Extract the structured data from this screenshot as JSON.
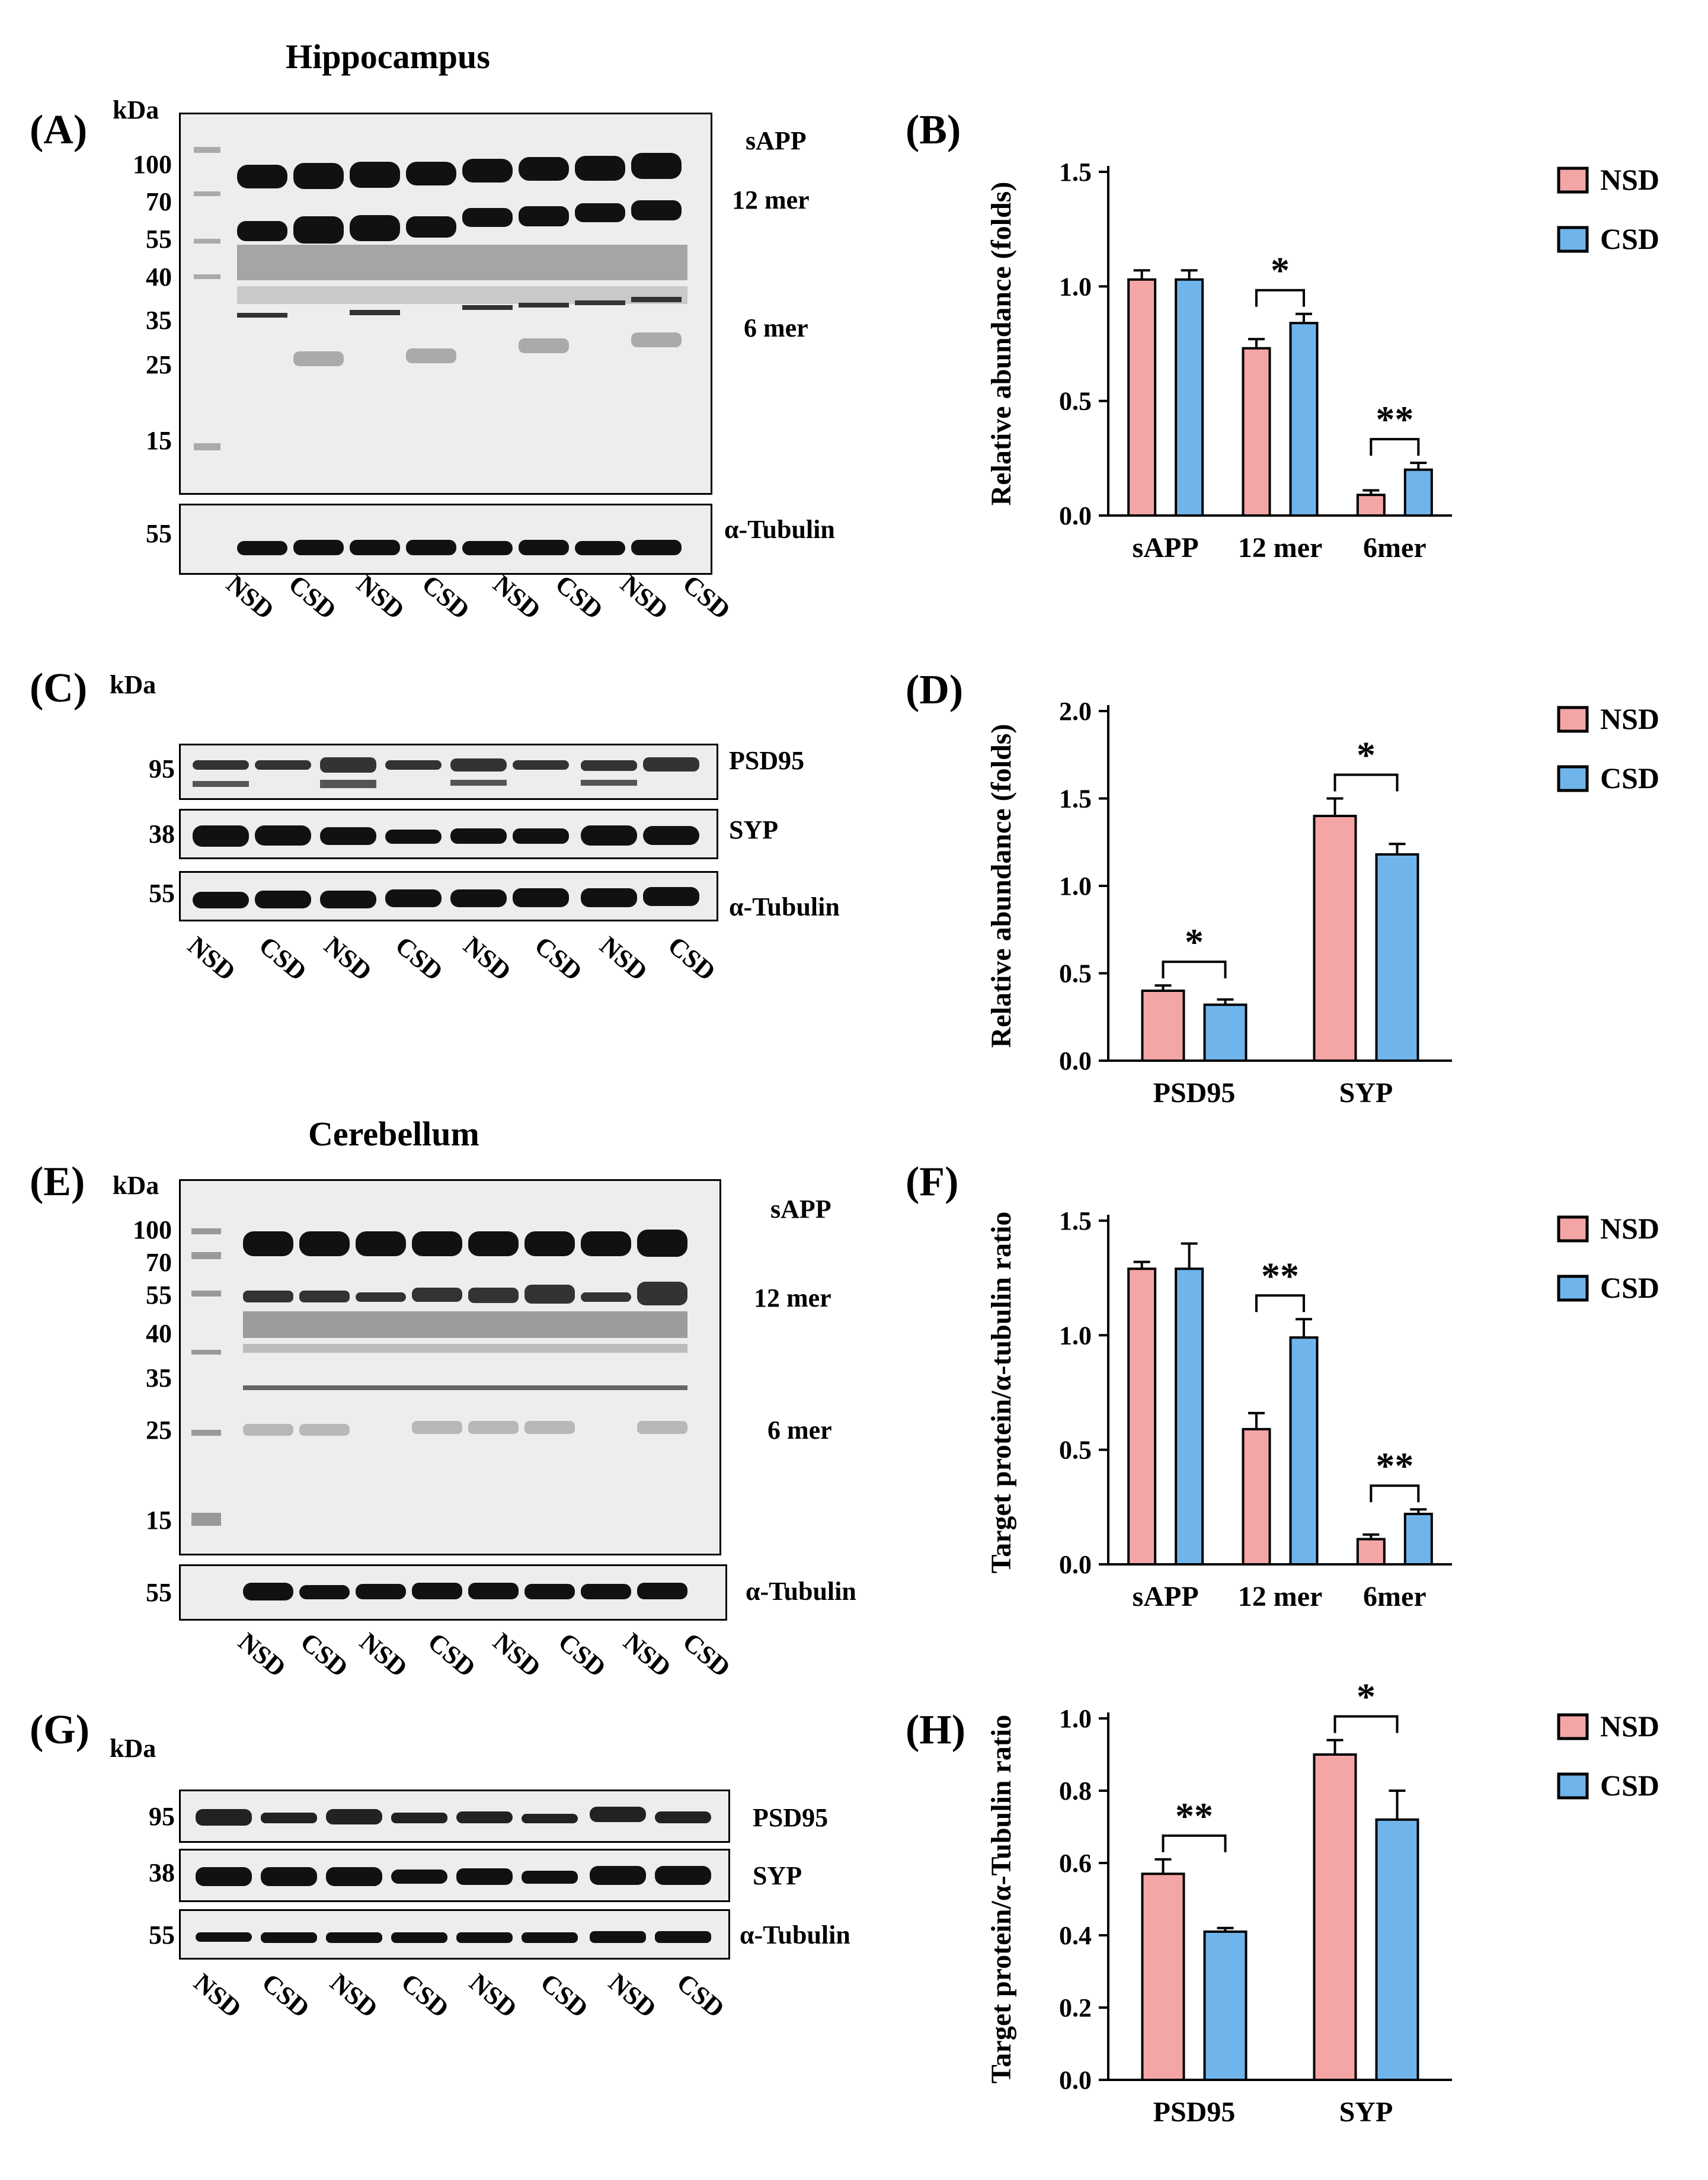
{
  "figure": {
    "hippocampus_title": "Hippocampus",
    "cerebellum_title": "Cerebellum",
    "kda": "kDa",
    "lanes": [
      "NSD",
      "CSD",
      "NSD",
      "CSD",
      "NSD",
      "CSD",
      "NSD",
      "CSD"
    ]
  },
  "panel_A": {
    "label": "(A)",
    "mw": [
      "100",
      "70",
      "55",
      "40",
      "35",
      "25",
      "15"
    ],
    "bands": [
      "sAPP",
      "12 mer",
      "6 mer"
    ],
    "loading_mw": "55",
    "loading_label": "α-Tubulin"
  },
  "panel_C": {
    "label": "(C)",
    "rows": [
      {
        "mw": "95",
        "name": "PSD95"
      },
      {
        "mw": "38",
        "name": "SYP"
      },
      {
        "mw": "55",
        "name": "α-Tubulin"
      }
    ]
  },
  "panel_E": {
    "label": "(E)",
    "mw": [
      "100",
      "70",
      "55",
      "40",
      "35",
      "25",
      "15"
    ],
    "bands": [
      "sAPP",
      "12 mer",
      "6 mer"
    ],
    "loading_mw": "55",
    "loading_label": "α-Tubulin"
  },
  "panel_G": {
    "label": "(G)",
    "rows": [
      {
        "mw": "95",
        "name": "PSD95"
      },
      {
        "mw": "38",
        "name": "SYP"
      },
      {
        "mw": "55",
        "name": "α-Tubulin"
      }
    ]
  },
  "colors": {
    "NSD": "#f4a6a6",
    "CSD": "#6fb5ec"
  },
  "chart_data": [
    {
      "panel": "(B)",
      "type": "bar",
      "categories": [
        "sAPP",
        "12 mer",
        "6mer"
      ],
      "series": [
        {
          "name": "NSD",
          "values": [
            1.03,
            0.73,
            0.09
          ],
          "errors": [
            0.04,
            0.04,
            0.02
          ]
        },
        {
          "name": "CSD",
          "values": [
            1.03,
            0.84,
            0.2
          ],
          "errors": [
            0.04,
            0.04,
            0.03
          ]
        }
      ],
      "ylabel": "Relative abundance (folds)",
      "ylim": [
        0,
        1.5
      ],
      "yticks": [
        "0.0",
        "0.5",
        "1.0",
        "1.5"
      ],
      "ytick_values": [
        0,
        0.5,
        1.0,
        1.5
      ],
      "significance": [
        {
          "category": "12 mer",
          "mark": "*"
        },
        {
          "category": "6mer",
          "mark": "**"
        }
      ],
      "legend": [
        "NSD",
        "CSD"
      ]
    },
    {
      "panel": "(D)",
      "type": "bar",
      "categories": [
        "PSD95",
        "SYP"
      ],
      "series": [
        {
          "name": "NSD",
          "values": [
            0.4,
            1.4
          ],
          "errors": [
            0.03,
            0.1
          ]
        },
        {
          "name": "CSD",
          "values": [
            0.32,
            1.18
          ],
          "errors": [
            0.03,
            0.06
          ]
        }
      ],
      "ylabel": "Relative abundance (folds)",
      "ylim": [
        0,
        2.0
      ],
      "yticks": [
        "0.0",
        "0.5",
        "1.0",
        "1.5",
        "2.0"
      ],
      "ytick_values": [
        0,
        0.5,
        1.0,
        1.5,
        2.0
      ],
      "significance": [
        {
          "category": "PSD95",
          "mark": "*"
        },
        {
          "category": "SYP",
          "mark": "*"
        }
      ],
      "legend": [
        "NSD",
        "CSD"
      ]
    },
    {
      "panel": "(F)",
      "type": "bar",
      "categories": [
        "sAPP",
        "12 mer",
        "6mer"
      ],
      "series": [
        {
          "name": "NSD",
          "values": [
            1.29,
            0.59,
            0.11
          ],
          "errors": [
            0.03,
            0.07,
            0.02
          ]
        },
        {
          "name": "CSD",
          "values": [
            1.29,
            0.99,
            0.22
          ],
          "errors": [
            0.11,
            0.08,
            0.02
          ]
        }
      ],
      "ylabel": "Target protein/α-tubulin ratio",
      "ylim": [
        0,
        1.5
      ],
      "yticks": [
        "0.0",
        "0.5",
        "1.0",
        "1.5"
      ],
      "ytick_values": [
        0,
        0.5,
        1.0,
        1.5
      ],
      "significance": [
        {
          "category": "12 mer",
          "mark": "**"
        },
        {
          "category": "6mer",
          "mark": "**"
        }
      ],
      "legend": [
        "NSD",
        "CSD"
      ]
    },
    {
      "panel": "(H)",
      "type": "bar",
      "categories": [
        "PSD95",
        "SYP"
      ],
      "series": [
        {
          "name": "NSD",
          "values": [
            0.57,
            0.9
          ],
          "errors": [
            0.04,
            0.04
          ]
        },
        {
          "name": "CSD",
          "values": [
            0.41,
            0.72
          ],
          "errors": [
            0.01,
            0.08
          ]
        }
      ],
      "ylabel": "Target protein/α-Tubulin ratio",
      "ylim": [
        0,
        1.0
      ],
      "yticks": [
        "0.0",
        "0.2",
        "0.4",
        "0.6",
        "0.8",
        "1.0"
      ],
      "ytick_values": [
        0,
        0.2,
        0.4,
        0.6,
        0.8,
        1.0
      ],
      "significance": [
        {
          "category": "PSD95",
          "mark": "**"
        },
        {
          "category": "SYP",
          "mark": "*"
        }
      ],
      "legend": [
        "NSD",
        "CSD"
      ]
    }
  ]
}
